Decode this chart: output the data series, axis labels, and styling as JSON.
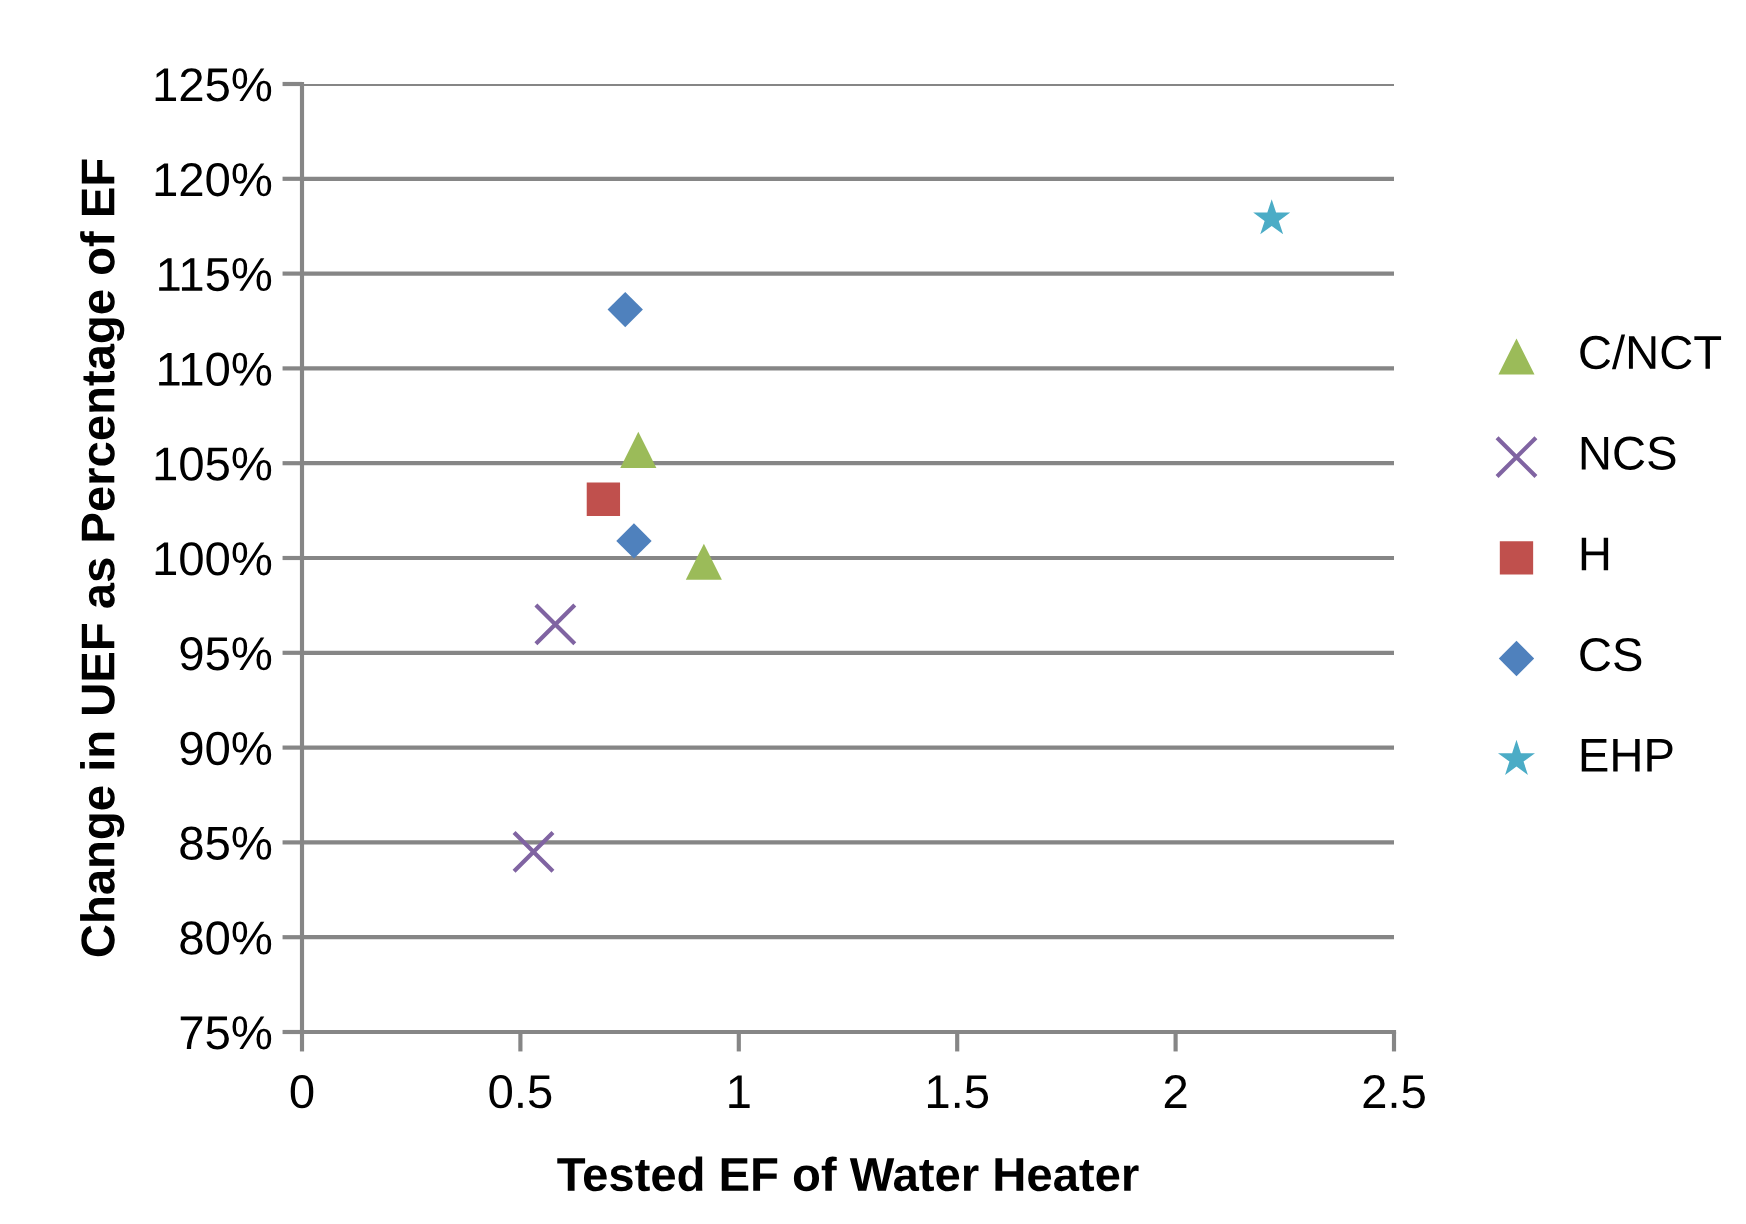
{
  "chart_data": {
    "type": "scatter",
    "xlabel": "Tested EF of Water Heater",
    "ylabel": "Change in UEF as Percentage of EF",
    "series": [
      {
        "name": "C/NCT",
        "color": "#9bbb59",
        "marker": "triangle",
        "x": [
          0.77,
          0.92
        ],
        "values": [
          105.7,
          99.8
        ]
      },
      {
        "name": "NCS",
        "color": "#8064a2",
        "marker": "cross",
        "x": [
          0.58,
          0.53
        ],
        "values": [
          96.5,
          84.5
        ]
      },
      {
        "name": "H",
        "color": "#c0504d",
        "marker": "square",
        "x": [
          0.69
        ],
        "values": [
          103.1
        ]
      },
      {
        "name": "CS",
        "color": "#4f81bd",
        "marker": "diamond",
        "x": [
          0.74,
          0.76
        ],
        "values": [
          113.1,
          100.9
        ]
      },
      {
        "name": "EHP",
        "color": "#4bacc6",
        "marker": "star",
        "x": [
          2.22
        ],
        "values": [
          117.9
        ]
      }
    ],
    "xlim": [
      0,
      2.5
    ],
    "xticks": [
      0,
      0.5,
      1,
      1.5,
      2,
      2.5
    ],
    "ylim": [
      75,
      125
    ],
    "yticks": [
      {
        "value": 75,
        "label": "75%"
      },
      {
        "value": 80,
        "label": "80%"
      },
      {
        "value": 85,
        "label": "85%"
      },
      {
        "value": 90,
        "label": "90%"
      },
      {
        "value": 95,
        "label": "95%"
      },
      {
        "value": 100,
        "label": "100%"
      },
      {
        "value": 105,
        "label": "105%"
      },
      {
        "value": 110,
        "label": "110%"
      },
      {
        "value": 115,
        "label": "115%"
      },
      {
        "value": 120,
        "label": "120%"
      },
      {
        "value": 125,
        "label": "125%"
      }
    ],
    "grid": "y",
    "legend": "right"
  }
}
